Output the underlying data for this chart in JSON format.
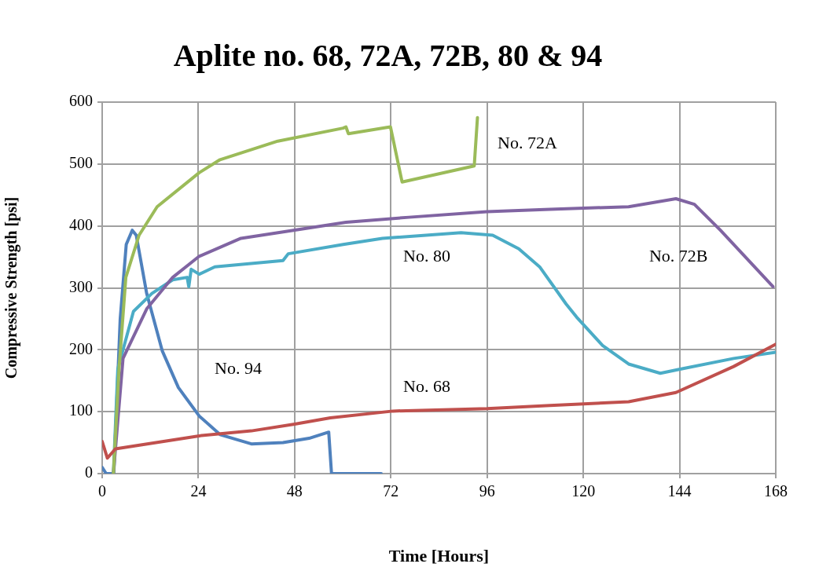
{
  "chart_data": {
    "type": "line",
    "title": "Aplite no. 68, 72A, 72B, 80 & 94",
    "xlabel": "Time [Hours]",
    "ylabel": "Compressive Strength [psi]",
    "xlim": [
      0,
      168
    ],
    "xticks": [
      0,
      24,
      48,
      72,
      96,
      120,
      144,
      168
    ],
    "ylim": [
      0,
      600
    ],
    "yticks": [
      0,
      100,
      200,
      300,
      400,
      500,
      600
    ],
    "grid": true,
    "legend": false,
    "marker": "none",
    "line_style": "solid",
    "series": [
      {
        "name": "No. 68",
        "color": "#c0504d",
        "x": [
          0,
          1.3,
          3.3,
          24.2,
          37.2,
          48,
          56.9,
          72.5,
          96,
          111.7,
          131.3,
          143.1,
          157.5,
          168
        ],
        "values": [
          52,
          25,
          40,
          61,
          69,
          80,
          90,
          101,
          105,
          110,
          116,
          131,
          173,
          209
        ]
      },
      {
        "name": "No. 72A",
        "color": "#9bbb59",
        "x": [
          2.8,
          4.2,
          5.9,
          9.2,
          13.7,
          24.2,
          29.4,
          43.8,
          60.1,
          60.8,
          61.4,
          71.9,
          74.8,
          92.8,
          93.6
        ],
        "values": [
          0,
          169,
          317,
          385,
          431,
          486,
          507,
          537,
          558,
          560,
          549,
          560,
          471,
          497,
          575
        ]
      },
      {
        "name": "No. 72B",
        "color": "#8064a2",
        "x": [
          2.8,
          5.2,
          11.1,
          17.6,
          24.2,
          34.6,
          47.7,
          60.8,
          76.5,
          96,
          111.7,
          131.3,
          143.1,
          147.7,
          154.2,
          167.3
        ],
        "values": [
          0,
          186,
          266,
          317,
          351,
          380,
          393,
          406,
          414,
          423,
          427,
          431,
          444,
          435,
          393,
          302
        ]
      },
      {
        "name": "No. 80",
        "color": "#4bacc6",
        "x": [
          2.8,
          3.9,
          7.8,
          12.4,
          17.6,
          21.2,
          21.6,
          22.2,
          24.2,
          28.1,
          45.1,
          46.4,
          60.1,
          69.9,
          89.5,
          97.4,
          103.9,
          109.1,
          115.7,
          118.3,
          124.8,
          131.3,
          139.2,
          144.4,
          157.5,
          168
        ],
        "values": [
          0,
          169,
          262,
          291,
          313,
          317,
          302,
          330,
          322,
          334,
          344,
          355,
          370,
          380,
          389,
          385,
          363,
          334,
          274,
          253,
          207,
          177,
          162,
          169,
          186,
          196
        ]
      },
      {
        "name": "No. 94",
        "color": "#4f81bd",
        "x": [
          0,
          1,
          2.9,
          4.5,
          6,
          7.5,
          8.5,
          11.1,
          15,
          19,
          24.2,
          29.4,
          37.2,
          45.1,
          51.6,
          56.5,
          57.2,
          69.6
        ],
        "values": [
          10,
          0,
          0,
          250,
          370,
          393,
          385,
          291,
          198,
          139,
          93,
          63,
          48,
          50,
          57,
          67,
          0,
          0
        ]
      }
    ]
  }
}
